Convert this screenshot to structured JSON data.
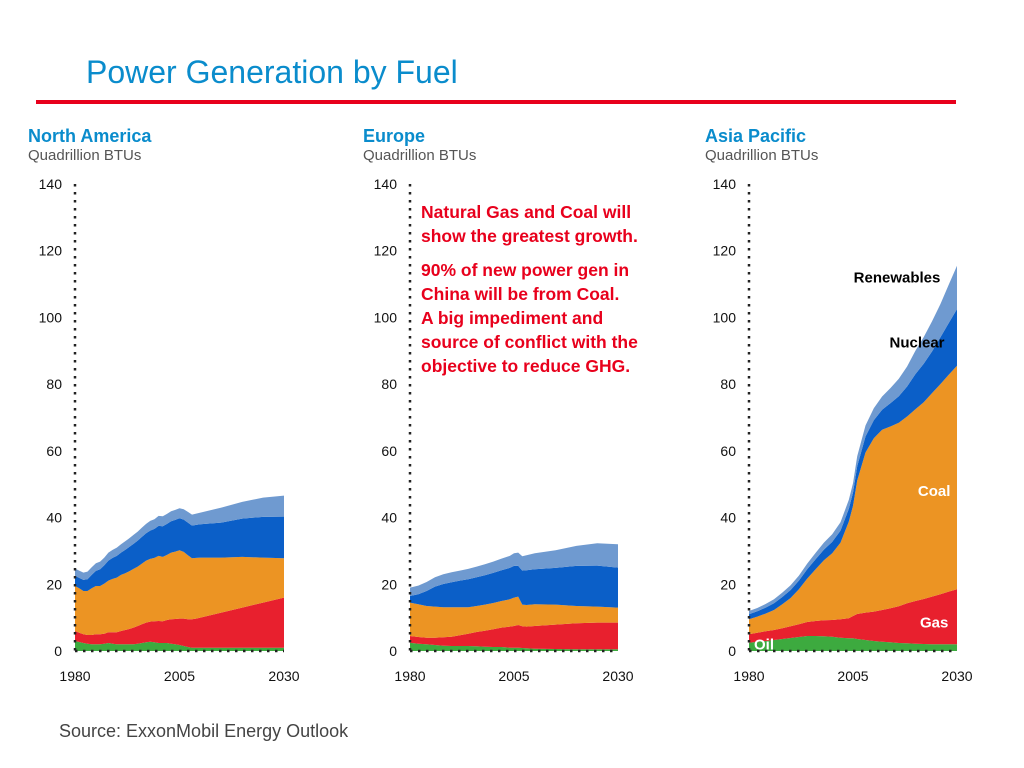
{
  "page": {
    "title": "Power Generation by Fuel",
    "source": "Source:  ExxonMobil Energy Outlook"
  },
  "callout": {
    "line1": "Natural Gas and Coal will\nshow the greatest growth.",
    "line2": "90% of new power gen in\nChina will be from Coal.\nA big impediment and\nsource of conflict with the\nobjective to reduce GHG."
  },
  "colors": {
    "Oil": "#3daa3f",
    "Gas": "#e8202e",
    "Coal": "#ec9423",
    "Nuclear": "#0b5fc8",
    "Renewables": "#6f9ad0",
    "title": "#0a8ccc",
    "accent": "#e8001c"
  },
  "chart_data": [
    {
      "type": "area",
      "stacked": true,
      "title": "North America",
      "ylabel": "Quadrillion BTUs",
      "ylim": [
        0,
        140
      ],
      "yticks": [
        0,
        20,
        40,
        60,
        80,
        100,
        120,
        140
      ],
      "xlim": [
        1980,
        2030
      ],
      "xticks": [
        1980,
        2005,
        2030
      ],
      "x": [
        1980,
        1981,
        1982,
        1983,
        1984,
        1985,
        1986,
        1987,
        1988,
        1989,
        1990,
        1991,
        1992,
        1993,
        1994,
        1995,
        1996,
        1997,
        1998,
        1999,
        2000,
        2001,
        2002,
        2003,
        2004,
        2005,
        2006,
        2007,
        2008,
        2009,
        2010,
        2015,
        2020,
        2025,
        2030
      ],
      "series": [
        {
          "name": "Oil",
          "values": [
            3,
            2.7,
            2.4,
            2.2,
            2,
            2,
            2,
            2.2,
            2.4,
            2.2,
            2,
            2,
            2,
            2,
            2,
            2.2,
            2.4,
            2.6,
            2.8,
            2.6,
            2.4,
            2.4,
            2.4,
            2.2,
            2,
            1.8,
            1.5,
            1.2,
            1,
            1,
            1,
            1,
            1,
            1,
            1
          ]
        },
        {
          "name": "Gas",
          "values": [
            3,
            2.8,
            2.6,
            2.6,
            2.8,
            3,
            3,
            3,
            3.2,
            3.4,
            3.6,
            4,
            4.3,
            4.6,
            5,
            5.3,
            5.6,
            5.9,
            6,
            6.3,
            6.6,
            6.5,
            6.9,
            7.3,
            7.6,
            7.9,
            8.2,
            8.3,
            8.5,
            8.7,
            9,
            10.5,
            12,
            13.5,
            15
          ]
        },
        {
          "name": "Coal",
          "values": [
            13.5,
            13.3,
            13,
            13.2,
            14,
            14.5,
            14.5,
            15,
            15.5,
            16,
            16.4,
            16.8,
            17,
            17.3,
            17.6,
            17.8,
            18.2,
            18.6,
            18.8,
            19,
            19.5,
            19.3,
            19.5,
            20,
            20.2,
            20.5,
            20,
            19.2,
            18.3,
            18.2,
            18,
            16.5,
            15.2,
            13.5,
            11.8
          ]
        },
        {
          "name": "Nuclear",
          "values": [
            3,
            3.1,
            3.3,
            3.5,
            4,
            4.5,
            5,
            5.5,
            6,
            6.3,
            6.5,
            6.7,
            7,
            7.3,
            7.5,
            7.8,
            8,
            8.2,
            8.5,
            8.7,
            9,
            9.2,
            9.3,
            9.4,
            9.5,
            9.6,
            9.7,
            9.8,
            9.8,
            9.9,
            10,
            10.5,
            11.5,
            12.2,
            12.5
          ]
        },
        {
          "name": "Renewables",
          "values": [
            2.2,
            2.2,
            2.2,
            2.3,
            2.3,
            2.3,
            2.3,
            2.3,
            2.4,
            2.4,
            2.5,
            2.5,
            2.6,
            2.6,
            2.7,
            2.7,
            2.8,
            2.8,
            2.9,
            2.9,
            3,
            3,
            3,
            3,
            3,
            3,
            3.1,
            3.2,
            3.3,
            3.4,
            3.5,
            4.5,
            5,
            5.8,
            6.3
          ]
        }
      ]
    },
    {
      "type": "area",
      "stacked": true,
      "title": "Europe",
      "ylabel": "Quadrillion BTUs",
      "ylim": [
        0,
        140
      ],
      "yticks": [
        0,
        20,
        40,
        60,
        80,
        100,
        120,
        140
      ],
      "xlim": [
        1980,
        2030
      ],
      "xticks": [
        1980,
        2005,
        2030
      ],
      "x": [
        1980,
        1982,
        1984,
        1986,
        1988,
        1990,
        1992,
        1994,
        1996,
        1998,
        2000,
        2002,
        2004,
        2005,
        2006,
        2007,
        2008,
        2010,
        2015,
        2020,
        2025,
        2030
      ],
      "series": [
        {
          "name": "Oil",
          "values": [
            2.5,
            2.2,
            2,
            1.8,
            1.6,
            1.5,
            1.5,
            1.5,
            1.4,
            1.3,
            1.2,
            1.2,
            1,
            1,
            1,
            0.9,
            0.8,
            0.7,
            0.6,
            0.5,
            0.5,
            0.5
          ]
        },
        {
          "name": "Gas",
          "values": [
            2,
            2,
            2,
            2.2,
            2.5,
            2.8,
            3.2,
            3.7,
            4.3,
            4.8,
            5.3,
            5.8,
            6.3,
            6.5,
            6.8,
            6.5,
            6.5,
            6.8,
            7.3,
            7.8,
            8,
            8
          ]
        },
        {
          "name": "Coal",
          "values": [
            10,
            9.8,
            9.5,
            9.3,
            9,
            8.8,
            8.4,
            7.9,
            7.8,
            7.8,
            7.9,
            8,
            8.2,
            8.5,
            8.5,
            6.5,
            6.5,
            6.5,
            6,
            5.2,
            4.8,
            4.5
          ]
        },
        {
          "name": "Nuclear",
          "values": [
            2,
            3,
            4.5,
            6,
            7,
            7.5,
            8,
            8.4,
            8.6,
            8.8,
            9,
            9.2,
            9.4,
            9.5,
            9.2,
            10.2,
            10.4,
            10.5,
            11,
            12,
            12.3,
            12
          ]
        },
        {
          "name": "Renewables",
          "values": [
            2.5,
            2.6,
            2.7,
            2.8,
            2.9,
            3,
            3,
            3.1,
            3.2,
            3.3,
            3.4,
            3.5,
            3.6,
            3.8,
            4,
            4.3,
            4.5,
            4.8,
            5.3,
            6,
            6.7,
            7
          ]
        }
      ]
    },
    {
      "type": "area",
      "stacked": true,
      "title": "Asia Pacific",
      "ylabel": "Quadrillion BTUs",
      "ylim": [
        0,
        140
      ],
      "yticks": [
        0,
        20,
        40,
        60,
        80,
        100,
        120,
        140
      ],
      "xlim": [
        1980,
        2030
      ],
      "xticks": [
        1980,
        2005,
        2030
      ],
      "x": [
        1980,
        1982,
        1984,
        1986,
        1988,
        1990,
        1992,
        1994,
        1996,
        1998,
        2000,
        2002,
        2004,
        2005,
        2006,
        2008,
        2010,
        2012,
        2014,
        2016,
        2018,
        2020,
        2022,
        2024,
        2026,
        2028,
        2030
      ],
      "series": [
        {
          "name": "Oil",
          "values": [
            2.5,
            2.8,
            3,
            3.3,
            3.6,
            3.9,
            4.2,
            4.5,
            4.5,
            4.4,
            4.3,
            4,
            3.8,
            3.8,
            3.6,
            3.3,
            3,
            2.8,
            2.6,
            2.4,
            2.3,
            2.2,
            2.1,
            2,
            2,
            2,
            2
          ]
        },
        {
          "name": "Gas",
          "values": [
            2.5,
            2.7,
            2.9,
            3,
            3.2,
            3.5,
            3.8,
            4.2,
            4.5,
            4.8,
            5,
            5.5,
            6,
            6.7,
            7.5,
            8.2,
            8.8,
            9.5,
            10.2,
            11,
            12,
            12.8,
            13.5,
            14.3,
            15,
            15.8,
            16.5
          ]
        },
        {
          "name": "Coal",
          "values": [
            4.5,
            4.8,
            5.3,
            6,
            7.2,
            8.5,
            10.5,
            13,
            15.5,
            18,
            20,
            23,
            29,
            33,
            40,
            48,
            52,
            54,
            54.5,
            55,
            56,
            57.5,
            59,
            61,
            63,
            65,
            67
          ]
        },
        {
          "name": "Nuclear",
          "values": [
            1.5,
            1.6,
            1.8,
            2,
            2.2,
            2.4,
            2.6,
            2.8,
            3,
            3.2,
            3.4,
            3.6,
            3.8,
            4,
            4.3,
            4.8,
            5.4,
            6,
            7,
            8,
            9,
            10.5,
            11.5,
            12.5,
            14,
            15.5,
            17
          ]
        },
        {
          "name": "Renewables",
          "values": [
            1,
            1,
            1.1,
            1.2,
            1.3,
            1.4,
            1.5,
            1.7,
            1.9,
            2.1,
            2.3,
            2.5,
            2.7,
            2.8,
            3,
            3.3,
            3.6,
            4,
            4.5,
            5.2,
            6,
            7,
            8,
            9,
            10,
            11.5,
            13
          ]
        }
      ]
    }
  ],
  "panels": [
    {
      "title": "North America",
      "subtitle": "Quadrillion BTUs"
    },
    {
      "title": "Europe",
      "subtitle": "Quadrillion BTUs"
    },
    {
      "title": "Asia Pacific",
      "subtitle": "Quadrillion BTUs",
      "series_labels": [
        {
          "series": "Renewables",
          "text": "Renewables",
          "x": 2026,
          "y": 112,
          "color": "#000000",
          "anchor": "end"
        },
        {
          "series": "Nuclear",
          "text": "Nuclear",
          "x": 2027,
          "y": 92.5,
          "color": "#000000",
          "anchor": "end"
        },
        {
          "series": "Coal",
          "text": "Coal",
          "x": 2024.5,
          "y": 48,
          "color": "#ffffff",
          "anchor": "middle"
        },
        {
          "series": "Gas",
          "text": "Gas",
          "x": 2024.5,
          "y": 8.5,
          "color": "#ffffff",
          "anchor": "middle"
        },
        {
          "series": "Oil",
          "text": "Oil",
          "x": 1981.2,
          "y": 2,
          "color": "#ffffff",
          "anchor": "start"
        }
      ]
    }
  ]
}
